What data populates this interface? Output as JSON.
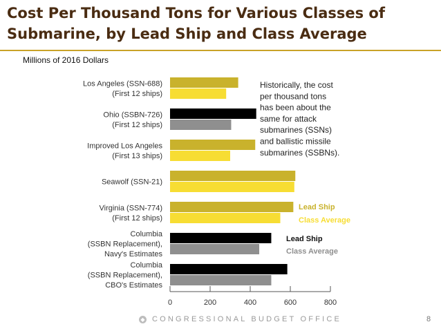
{
  "header": {
    "title_line1": "Cost Per Thousand Tons for Various Classes of",
    "title_line2": "Submarine, by Lead Ship and Class Average",
    "subtitle": "Millions of 2016 Dollars"
  },
  "colors": {
    "title": "#4a2c12",
    "rule": "#c9a227",
    "lead_gold": "#c9b22c",
    "avg_yellow": "#f7dd33",
    "lead_black": "#000000",
    "avg_gray": "#8f8f8f"
  },
  "chart_data": {
    "type": "bar",
    "orientation": "horizontal",
    "title": "Cost Per Thousand Tons for Various Classes of Submarine, by Lead Ship and Class Average",
    "xlabel": "Millions of 2016 Dollars",
    "ylabel": "",
    "xlim": [
      0,
      800
    ],
    "xticks": [
      0,
      200,
      400,
      600,
      800
    ],
    "categories": [
      {
        "lines": [
          "Los Angeles (SSN-688)",
          "(First 12 ships)"
        ],
        "lead": 340,
        "average": 280,
        "scheme": "yellow"
      },
      {
        "lines": [
          "Ohio (SSBN-726)",
          "(First 12 ships)"
        ],
        "lead": 430,
        "average": 305,
        "scheme": "gray"
      },
      {
        "lines": [
          "Improved Los Angeles",
          "(First 13 ships)"
        ],
        "lead": 425,
        "average": 300,
        "scheme": "yellow"
      },
      {
        "lines": [
          "Seawolf (SSN-21)"
        ],
        "lead": 625,
        "average": 620,
        "scheme": "yellow"
      },
      {
        "lines": [
          "Virginia (SSN-774)",
          "(First 12 ships)"
        ],
        "lead": 615,
        "average": 550,
        "scheme": "yellow"
      },
      {
        "lines": [
          "Columbia",
          "(SSBN Replacement),",
          "Navy's Estimates"
        ],
        "lead": 505,
        "average": 445,
        "scheme": "gray"
      },
      {
        "lines": [
          "Columbia",
          "(SSBN Replacement),",
          "CBO's Estimates"
        ],
        "lead": 585,
        "average": 505,
        "scheme": "gray"
      }
    ],
    "series": [
      {
        "name": "Lead Ship"
      },
      {
        "name": "Class Average"
      }
    ],
    "legends": [
      {
        "scheme": "yellow",
        "lead_label": "Lead Ship",
        "avg_label": "Class Average"
      },
      {
        "scheme": "gray",
        "lead_label": "Lead Ship",
        "avg_label": "Class Average"
      }
    ],
    "annotation": [
      "Historically, the cost",
      "per thousand tons",
      "has been about the",
      "same for attack",
      "submarines (SSNs)",
      "and ballistic missile",
      "submarines (SSBNs)."
    ]
  },
  "footer": {
    "org": "CONGRESSIONAL BUDGET OFFICE",
    "page": "8"
  }
}
